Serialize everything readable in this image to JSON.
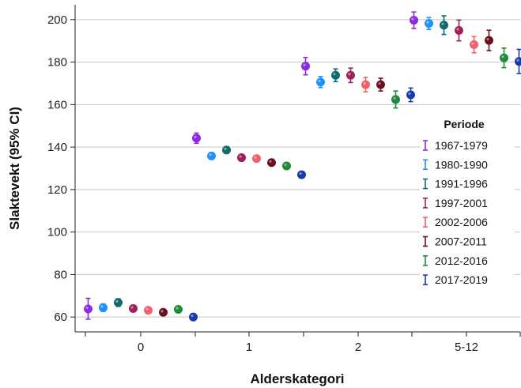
{
  "chart_data": {
    "type": "scatter",
    "title": "",
    "xlabel": "Alderskategori",
    "ylabel": "Slaktevekt (95% CI)",
    "categories": [
      "0",
      "1",
      "2",
      "5-12"
    ],
    "ylim": [
      53,
      207
    ],
    "yticks": [
      60,
      80,
      100,
      120,
      140,
      160,
      180,
      200
    ],
    "grid": "horizontal",
    "legend": {
      "title": "Periode",
      "position": "right"
    },
    "series": [
      {
        "name": "1967-1979",
        "color": "#8a2be2",
        "points": [
          {
            "x": "0",
            "y": 63.8,
            "lo": 59.0,
            "hi": 68.8
          },
          {
            "x": "1",
            "y": 144.2,
            "lo": 141.8,
            "hi": 146.6
          },
          {
            "x": "2",
            "y": 178.1,
            "lo": 174.0,
            "hi": 182.2
          },
          {
            "x": "5-12",
            "y": 199.7,
            "lo": 195.8,
            "hi": 203.6
          }
        ]
      },
      {
        "name": "1980-1990",
        "color": "#1e90ff",
        "points": [
          {
            "x": "0",
            "y": 64.4,
            "lo": 62.6,
            "hi": 66.2
          },
          {
            "x": "1",
            "y": 135.8,
            "lo": 134.2,
            "hi": 137.4
          },
          {
            "x": "2",
            "y": 170.6,
            "lo": 168.0,
            "hi": 173.2
          },
          {
            "x": "5-12",
            "y": 198.2,
            "lo": 195.4,
            "hi": 201.0
          }
        ]
      },
      {
        "name": "1991-1996",
        "color": "#0f6b6b",
        "points": [
          {
            "x": "0",
            "y": 66.8,
            "lo": 65.0,
            "hi": 68.6
          },
          {
            "x": "1",
            "y": 138.6,
            "lo": 137.0,
            "hi": 140.2
          },
          {
            "x": "2",
            "y": 173.8,
            "lo": 170.8,
            "hi": 176.8
          },
          {
            "x": "5-12",
            "y": 197.4,
            "lo": 193.0,
            "hi": 201.8
          }
        ]
      },
      {
        "name": "1997-2001",
        "color": "#a0205a",
        "points": [
          {
            "x": "0",
            "y": 64.0,
            "lo": 62.6,
            "hi": 65.4
          },
          {
            "x": "1",
            "y": 135.0,
            "lo": 133.6,
            "hi": 136.4
          },
          {
            "x": "2",
            "y": 173.8,
            "lo": 170.4,
            "hi": 177.2
          },
          {
            "x": "5-12",
            "y": 194.9,
            "lo": 190.0,
            "hi": 199.8
          }
        ]
      },
      {
        "name": "2002-2006",
        "color": "#f0606a",
        "points": [
          {
            "x": "0",
            "y": 63.2,
            "lo": 61.8,
            "hi": 64.6
          },
          {
            "x": "1",
            "y": 134.6,
            "lo": 133.2,
            "hi": 136.0
          },
          {
            "x": "2",
            "y": 169.4,
            "lo": 166.0,
            "hi": 172.8
          },
          {
            "x": "5-12",
            "y": 188.2,
            "lo": 184.4,
            "hi": 192.0
          }
        ]
      },
      {
        "name": "2007-2011",
        "color": "#6b0f1a",
        "points": [
          {
            "x": "0",
            "y": 62.2,
            "lo": 61.0,
            "hi": 63.4
          },
          {
            "x": "1",
            "y": 132.7,
            "lo": 131.3,
            "hi": 134.1
          },
          {
            "x": "2",
            "y": 169.4,
            "lo": 166.4,
            "hi": 172.4
          },
          {
            "x": "5-12",
            "y": 190.2,
            "lo": 185.4,
            "hi": 195.0
          }
        ]
      },
      {
        "name": "2012-2016",
        "color": "#1e8a3a",
        "points": [
          {
            "x": "0",
            "y": 63.6,
            "lo": 62.2,
            "hi": 65.0
          },
          {
            "x": "1",
            "y": 131.1,
            "lo": 129.5,
            "hi": 132.7
          },
          {
            "x": "2",
            "y": 162.4,
            "lo": 158.4,
            "hi": 166.4
          },
          {
            "x": "5-12",
            "y": 182.0,
            "lo": 177.4,
            "hi": 186.6
          }
        ]
      },
      {
        "name": "2017-2019",
        "color": "#1a3aa8",
        "points": [
          {
            "x": "0",
            "y": 60.0,
            "lo": 58.8,
            "hi": 61.2
          },
          {
            "x": "1",
            "y": 127.0,
            "lo": 125.6,
            "hi": 128.4
          },
          {
            "x": "2",
            "y": 164.6,
            "lo": 161.4,
            "hi": 167.8
          },
          {
            "x": "5-12",
            "y": 180.3,
            "lo": 174.6,
            "hi": 186.0
          }
        ]
      }
    ]
  }
}
